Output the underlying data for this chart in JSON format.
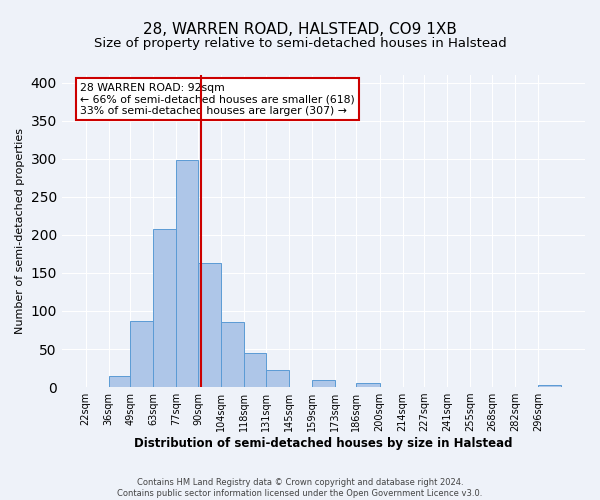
{
  "title": "28, WARREN ROAD, HALSTEAD, CO9 1XB",
  "subtitle": "Size of property relative to semi-detached houses in Halstead",
  "xlabel": "Distribution of semi-detached houses by size in Halstead",
  "ylabel": "Number of semi-detached properties",
  "footer_lines": [
    "Contains HM Land Registry data © Crown copyright and database right 2024.",
    "Contains public sector information licensed under the Open Government Licence v3.0."
  ],
  "bin_labels": [
    "22sqm",
    "36sqm",
    "49sqm",
    "63sqm",
    "77sqm",
    "90sqm",
    "104sqm",
    "118sqm",
    "131sqm",
    "145sqm",
    "159sqm",
    "173sqm",
    "186sqm",
    "200sqm",
    "214sqm",
    "227sqm",
    "241sqm",
    "255sqm",
    "268sqm",
    "282sqm",
    "296sqm"
  ],
  "bin_edges": [
    22,
    36,
    49,
    63,
    77,
    90,
    104,
    118,
    131,
    145,
    159,
    173,
    186,
    200,
    214,
    227,
    241,
    255,
    268,
    282,
    296
  ],
  "bar_heights": [
    0,
    15,
    87,
    208,
    298,
    163,
    85,
    45,
    22,
    0,
    9,
    0,
    5,
    0,
    0,
    0,
    0,
    0,
    0,
    0,
    3
  ],
  "bar_color": "#aec6e8",
  "bar_edge_color": "#5b9bd5",
  "property_value": 92,
  "property_line_color": "#cc0000",
  "annotation_text_line1": "28 WARREN ROAD: 92sqm",
  "annotation_text_line2": "← 66% of semi-detached houses are smaller (618)",
  "annotation_text_line3": "33% of semi-detached houses are larger (307) →",
  "annotation_box_color": "#cc0000",
  "ylim": [
    0,
    410
  ],
  "yticks": [
    0,
    50,
    100,
    150,
    200,
    250,
    300,
    350,
    400
  ],
  "bg_color": "#eef2f9",
  "grid_color": "#ffffff",
  "title_fontsize": 11,
  "subtitle_fontsize": 9.5
}
